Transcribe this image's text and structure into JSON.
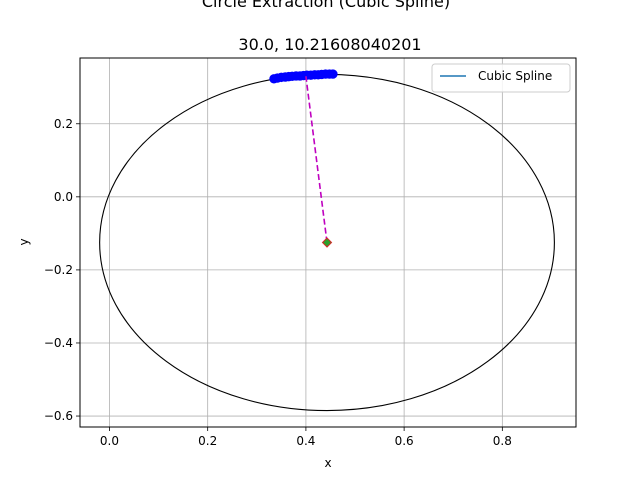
{
  "chart_data": {
    "type": "line",
    "title": "Circle Extraction (Cubic Spline)",
    "subtitle": "30.0, 10.21608040201",
    "xlabel": "x",
    "ylabel": "y",
    "xlim": [
      -0.06,
      0.95
    ],
    "ylim": [
      -0.63,
      0.38
    ],
    "xticks": [
      0.0,
      0.2,
      0.4,
      0.6,
      0.8
    ],
    "xtick_labels": [
      "0.0",
      "0.2",
      "0.4",
      "0.6",
      "0.8"
    ],
    "yticks": [
      0.2,
      0.0,
      -0.2,
      -0.4,
      -0.6
    ],
    "ytick_labels": [
      "0.2",
      "0.0",
      "−0.2",
      "−0.4",
      "−0.6"
    ],
    "grid": true,
    "legend": {
      "position": "upper-right",
      "entries": [
        "Cubic Spline"
      ]
    },
    "colors": {
      "spline": "#1f77b4",
      "points": "#0000ff",
      "circle": "#000000",
      "radius_line": "#bf00bf",
      "center_fill": "#2ca02c",
      "center_edge": "#d62728",
      "grid": "#b0b0b0"
    },
    "circle": {
      "center": [
        0.443,
        -0.125
      ],
      "rx": 0.463,
      "ry": 0.46
    },
    "radius_line": {
      "from": [
        0.443,
        -0.125
      ],
      "to": [
        0.4,
        0.33
      ]
    },
    "center_marker": {
      "x": 0.443,
      "y": -0.125,
      "shape": "diamond"
    },
    "series": [
      {
        "name": "Cubic Spline",
        "x": [
          0.335,
          0.35,
          0.365,
          0.38,
          0.395,
          0.41,
          0.425,
          0.44,
          0.455
        ],
        "y": [
          0.323,
          0.327,
          0.329,
          0.331,
          0.332,
          0.333,
          0.334,
          0.336,
          0.336
        ]
      }
    ],
    "points": {
      "x": [
        0.335,
        0.342,
        0.35,
        0.358,
        0.365,
        0.372,
        0.38,
        0.388,
        0.395,
        0.402,
        0.41,
        0.418,
        0.425,
        0.432,
        0.44,
        0.448,
        0.455
      ],
      "y": [
        0.323,
        0.325,
        0.327,
        0.328,
        0.329,
        0.33,
        0.331,
        0.331,
        0.332,
        0.333,
        0.333,
        0.334,
        0.334,
        0.335,
        0.336,
        0.336,
        0.336
      ]
    }
  }
}
